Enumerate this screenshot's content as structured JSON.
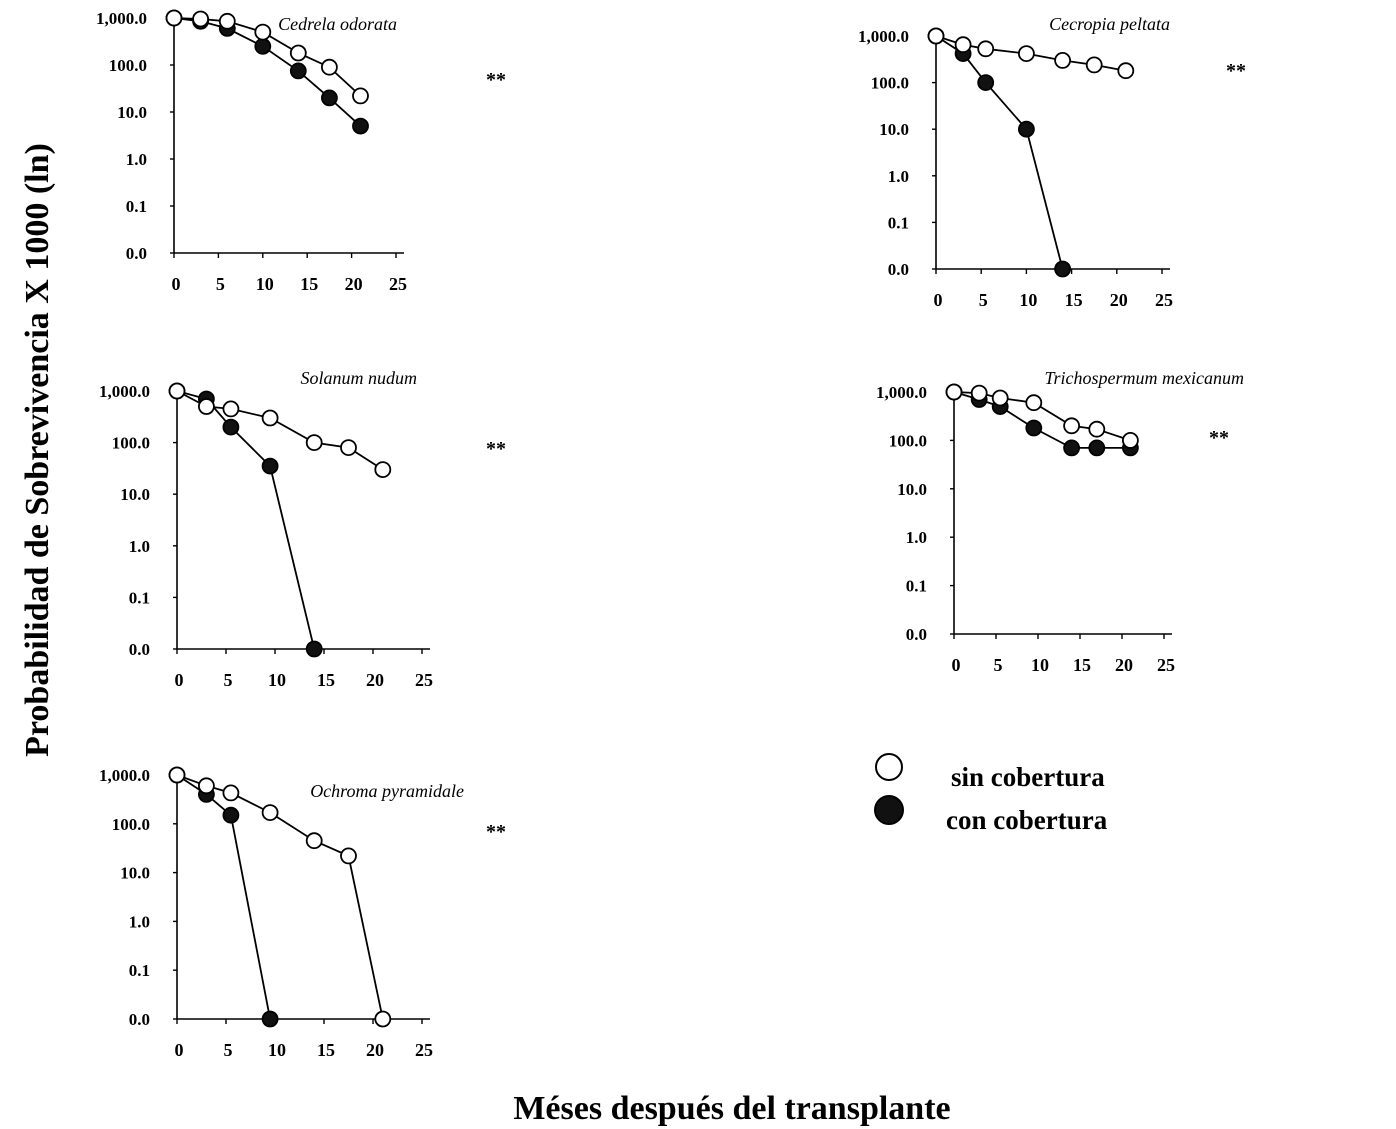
{
  "ylabel": "Probabilidad  de Sobrevivencia X 1000 (ln)",
  "xlabel": "Méses después del transplante",
  "legend": {
    "open": "sin cobertura",
    "filled": "con cobertura"
  },
  "colors": {
    "ink": "#000000",
    "open_fill": "#ffffff",
    "filled_fill": "#111111"
  },
  "chart_data": [
    {
      "type": "line",
      "title": "Cedrela odorata",
      "significance": "**",
      "xticks": [
        "0",
        "5",
        "10",
        "15",
        "20",
        "25"
      ],
      "yticks": [
        "0.0",
        "0.1",
        "1.0",
        "10.0",
        "100.0",
        "1,000.0"
      ],
      "xlim": [
        0,
        25
      ],
      "yscale": "log",
      "series": [
        {
          "name": "sin cobertura",
          "marker": "open",
          "x": [
            0,
            3,
            6,
            10,
            14,
            17.5,
            21
          ],
          "y": [
            1000,
            950,
            850,
            500,
            180,
            90,
            22
          ]
        },
        {
          "name": "con cobertura",
          "marker": "filled",
          "x": [
            0,
            3,
            6,
            10,
            14,
            17.5,
            21
          ],
          "y": [
            1000,
            850,
            600,
            250,
            75,
            20,
            5
          ]
        }
      ]
    },
    {
      "type": "line",
      "title": "Cecropia peltata",
      "significance": "**",
      "xticks": [
        "0",
        "5",
        "10",
        "15",
        "20",
        "25"
      ],
      "yticks": [
        "0.0",
        "0.1",
        "1.0",
        "10.0",
        "100.0",
        "1,000.0"
      ],
      "xlim": [
        0,
        25
      ],
      "yscale": "log",
      "series": [
        {
          "name": "sin cobertura",
          "marker": "open",
          "x": [
            0,
            3,
            5.5,
            10,
            14,
            17.5,
            21
          ],
          "y": [
            1000,
            650,
            530,
            420,
            300,
            240,
            180
          ]
        },
        {
          "name": "con cobertura",
          "marker": "filled",
          "x": [
            0,
            3,
            5.5,
            10,
            14
          ],
          "y": [
            1000,
            420,
            100,
            10,
            0
          ]
        }
      ]
    },
    {
      "type": "line",
      "title": "Solanum nudum",
      "significance": "**",
      "xticks": [
        "0",
        "5",
        "10",
        "15",
        "20",
        "25"
      ],
      "yticks": [
        "0.0",
        "0.1",
        "1.0",
        "10.0",
        "100.0",
        "1,000.0"
      ],
      "xlim": [
        0,
        25
      ],
      "yscale": "log",
      "series": [
        {
          "name": "sin cobertura",
          "marker": "open",
          "x": [
            0,
            3,
            5.5,
            9.5,
            14,
            17.5,
            21
          ],
          "y": [
            1000,
            500,
            450,
            300,
            100,
            80,
            30
          ]
        },
        {
          "name": "con cobertura",
          "marker": "filled",
          "x": [
            0,
            3,
            5.5,
            9.5,
            14
          ],
          "y": [
            1000,
            700,
            200,
            35,
            0
          ]
        }
      ]
    },
    {
      "type": "line",
      "title": "Trichospermum mexicanum",
      "significance": "**",
      "xticks": [
        "0",
        "5",
        "10",
        "15",
        "20",
        "25"
      ],
      "yticks": [
        "0.0",
        "0.1",
        "1.0",
        "10.0",
        "100.0",
        "1,000.0"
      ],
      "xlim": [
        0,
        25
      ],
      "yscale": "log",
      "series": [
        {
          "name": "sin cobertura",
          "marker": "open",
          "x": [
            0,
            3,
            5.5,
            9.5,
            14,
            17,
            21
          ],
          "y": [
            1000,
            950,
            750,
            600,
            200,
            170,
            100
          ]
        },
        {
          "name": "con cobertura",
          "marker": "filled",
          "x": [
            0,
            3,
            5.5,
            9.5,
            14,
            17,
            21
          ],
          "y": [
            1000,
            700,
            500,
            180,
            70,
            70,
            70
          ]
        }
      ]
    },
    {
      "type": "line",
      "title": "Ochroma pyramidale",
      "significance": "**",
      "xticks": [
        "0",
        "5",
        "10",
        "15",
        "20",
        "25"
      ],
      "yticks": [
        "0.0",
        "0.1",
        "1.0",
        "10.0",
        "100.0",
        "1,000.0"
      ],
      "xlim": [
        0,
        25
      ],
      "yscale": "log",
      "series": [
        {
          "name": "sin cobertura",
          "marker": "open",
          "x": [
            0,
            3,
            5.5,
            9.5,
            14,
            17.5,
            21
          ],
          "y": [
            1000,
            600,
            430,
            170,
            45,
            22,
            0
          ]
        },
        {
          "name": "con cobertura",
          "marker": "filled",
          "x": [
            0,
            3,
            5.5,
            9.5
          ],
          "y": [
            1000,
            400,
            150,
            0
          ]
        }
      ]
    }
  ]
}
